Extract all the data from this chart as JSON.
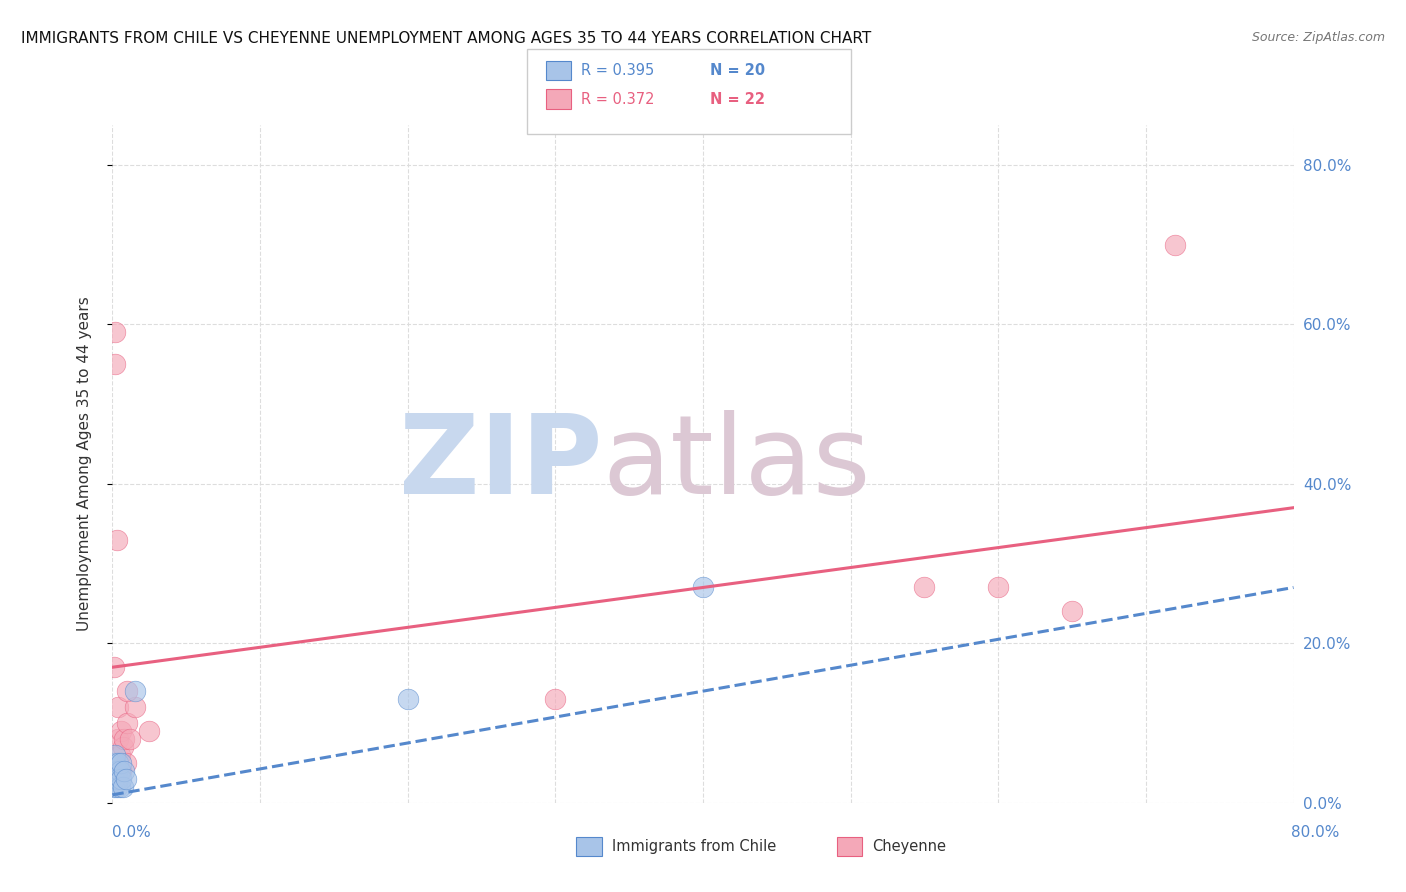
{
  "title": "IMMIGRANTS FROM CHILE VS CHEYENNE UNEMPLOYMENT AMONG AGES 35 TO 44 YEARS CORRELATION CHART",
  "source": "Source: ZipAtlas.com",
  "xlabel_bottom_left": "0.0%",
  "xlabel_bottom_right": "80.0%",
  "ylabel": "Unemployment Among Ages 35 to 44 years",
  "legend_blue_r": "R = 0.395",
  "legend_blue_n": "N = 20",
  "legend_pink_r": "R = 0.372",
  "legend_pink_n": "N = 22",
  "legend_label_blue": "Immigrants from Chile",
  "legend_label_pink": "Cheyenne",
  "blue_color": "#a8c4e8",
  "pink_color": "#f4a8b8",
  "blue_line_color": "#5588cc",
  "pink_line_color": "#e86080",
  "blue_points": [
    [
      0.001,
      0.02
    ],
    [
      0.001,
      0.03
    ],
    [
      0.002,
      0.04
    ],
    [
      0.002,
      0.05
    ],
    [
      0.002,
      0.06
    ],
    [
      0.003,
      0.02
    ],
    [
      0.003,
      0.04
    ],
    [
      0.003,
      0.03
    ],
    [
      0.004,
      0.05
    ],
    [
      0.004,
      0.03
    ],
    [
      0.005,
      0.04
    ],
    [
      0.005,
      0.02
    ],
    [
      0.006,
      0.03
    ],
    [
      0.006,
      0.05
    ],
    [
      0.007,
      0.02
    ],
    [
      0.008,
      0.04
    ],
    [
      0.009,
      0.03
    ],
    [
      0.015,
      0.14
    ],
    [
      0.2,
      0.13
    ],
    [
      0.4,
      0.27
    ]
  ],
  "pink_points": [
    [
      0.001,
      0.17
    ],
    [
      0.002,
      0.59
    ],
    [
      0.002,
      0.55
    ],
    [
      0.003,
      0.33
    ],
    [
      0.004,
      0.08
    ],
    [
      0.004,
      0.12
    ],
    [
      0.005,
      0.06
    ],
    [
      0.006,
      0.09
    ],
    [
      0.007,
      0.07
    ],
    [
      0.008,
      0.08
    ],
    [
      0.009,
      0.05
    ],
    [
      0.01,
      0.1
    ],
    [
      0.012,
      0.08
    ],
    [
      0.015,
      0.12
    ],
    [
      0.025,
      0.09
    ],
    [
      0.3,
      0.13
    ],
    [
      0.55,
      0.27
    ],
    [
      0.6,
      0.27
    ],
    [
      0.65,
      0.24
    ],
    [
      0.72,
      0.7
    ],
    [
      0.01,
      0.14
    ],
    [
      0.006,
      0.04
    ]
  ],
  "xlim": [
    0.0,
    0.8
  ],
  "ylim": [
    0.0,
    0.85
  ],
  "yticks": [
    0.0,
    0.2,
    0.4,
    0.6,
    0.8
  ],
  "ytick_labels": [
    "0.0%",
    "20.0%",
    "40.0%",
    "60.0%",
    "80.0%"
  ],
  "xticks": [
    0.0,
    0.1,
    0.2,
    0.3,
    0.4,
    0.5,
    0.6,
    0.7,
    0.8
  ],
  "background_color": "#ffffff",
  "grid_color": "#dddddd",
  "blue_trend": [
    0.0,
    0.8,
    0.01,
    0.27
  ],
  "pink_trend": [
    0.0,
    0.8,
    0.17,
    0.37
  ]
}
